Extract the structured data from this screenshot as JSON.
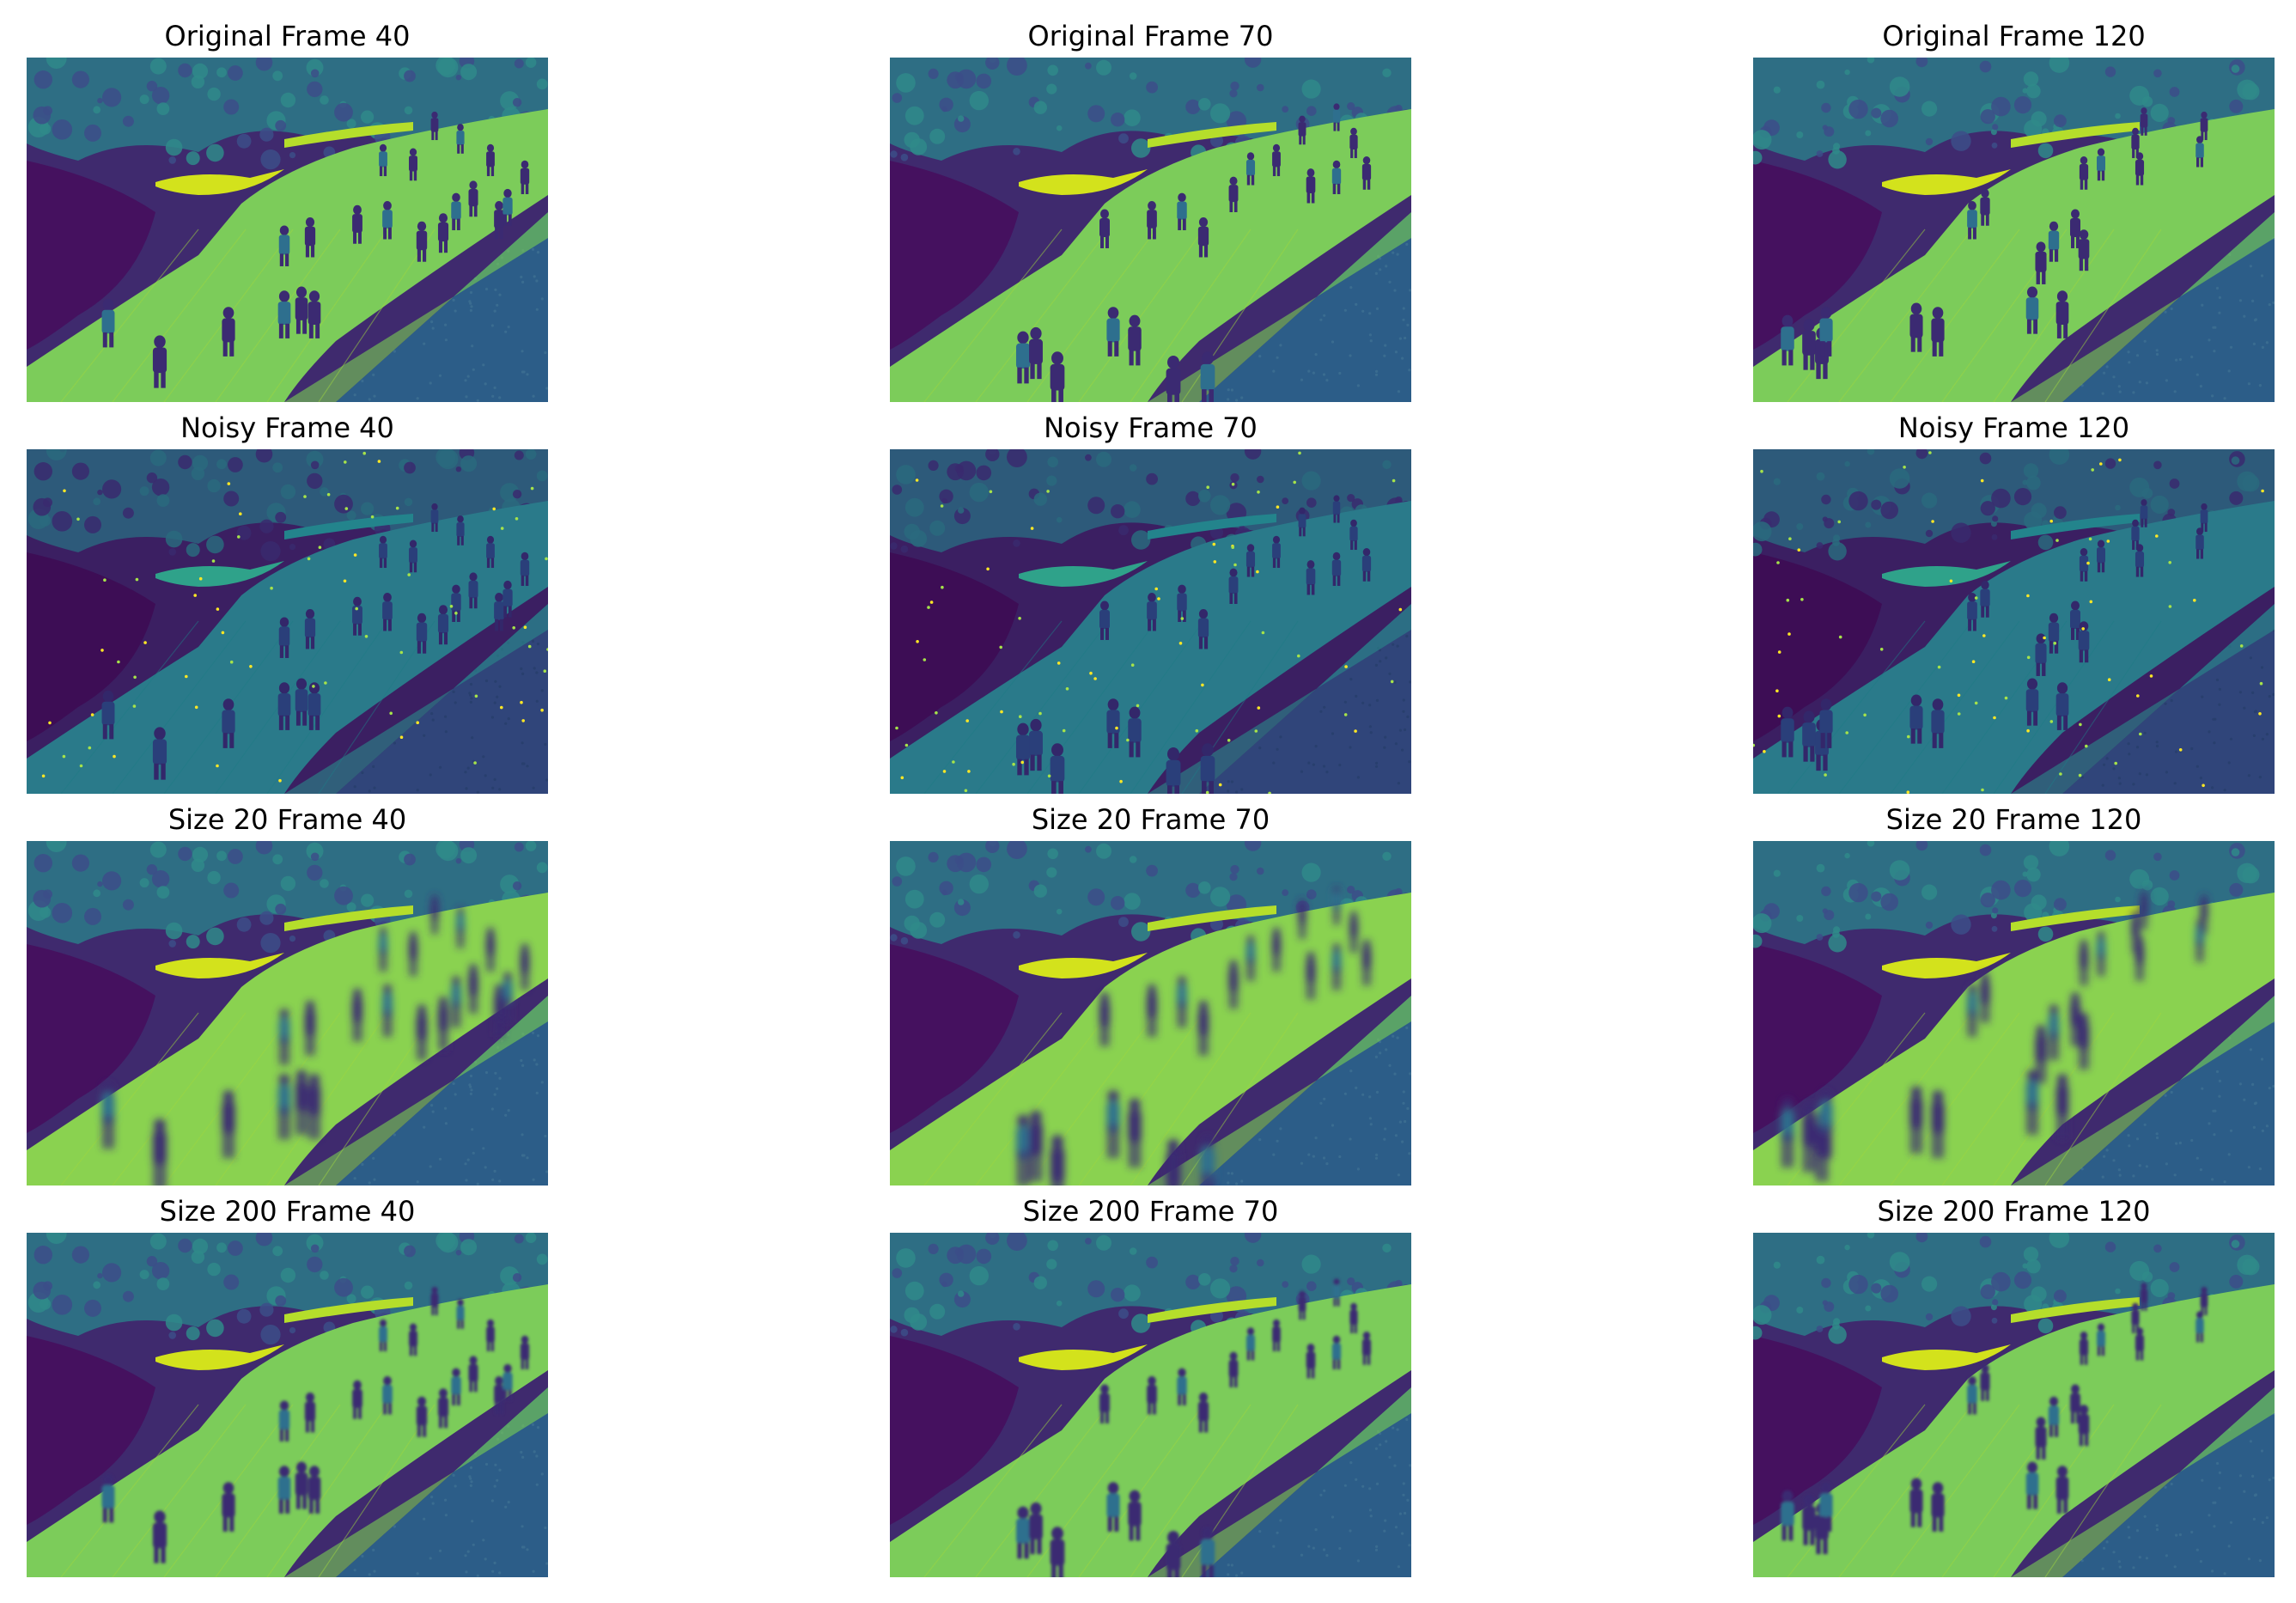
{
  "figure": {
    "rows": [
      {
        "kind": "original",
        "panels": [
          {
            "title": "Original Frame 40",
            "frame": 40
          },
          {
            "title": "Original Frame 70",
            "frame": 70
          },
          {
            "title": "Original Frame 120",
            "frame": 120
          }
        ]
      },
      {
        "kind": "noisy",
        "panels": [
          {
            "title": "Noisy Frame 40",
            "frame": 40
          },
          {
            "title": "Noisy Frame 70",
            "frame": 70
          },
          {
            "title": "Noisy Frame 120",
            "frame": 120
          }
        ]
      },
      {
        "kind": "size20",
        "panels": [
          {
            "title": "Size 20 Frame 40",
            "frame": 40
          },
          {
            "title": "Size 20 Frame 70",
            "frame": 70
          },
          {
            "title": "Size 20 Frame 120",
            "frame": 120
          }
        ]
      },
      {
        "kind": "size200",
        "panels": [
          {
            "title": "Size 200 Frame 40",
            "frame": 40
          },
          {
            "title": "Size 200 Frame 70",
            "frame": 70
          },
          {
            "title": "Size 200 Frame 120",
            "frame": 120
          }
        ]
      }
    ],
    "colormap": [
      "#440154",
      "#3b528b",
      "#21918c",
      "#5ec962",
      "#fde725"
    ]
  }
}
